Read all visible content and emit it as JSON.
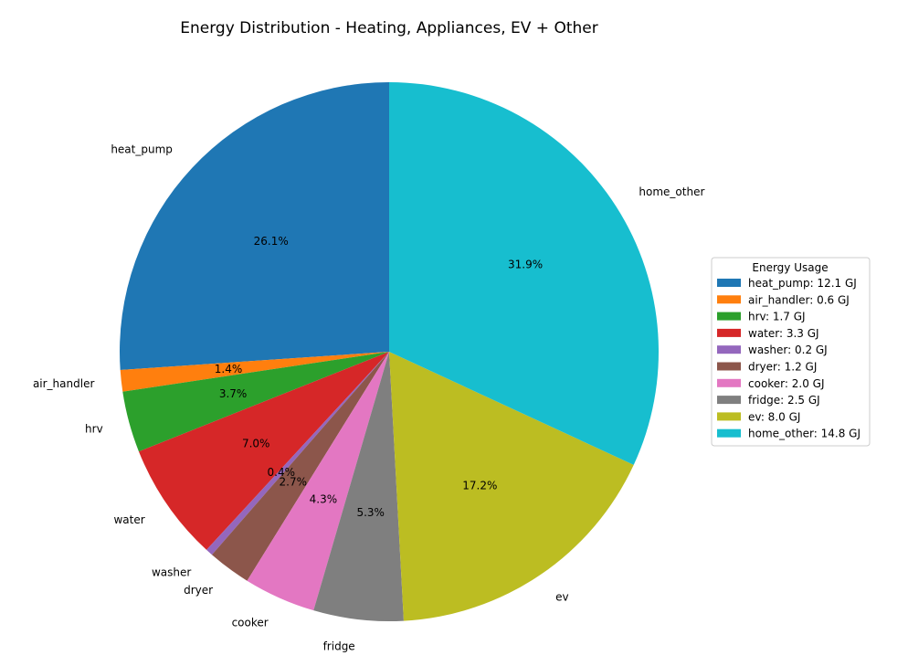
{
  "chart_data": {
    "type": "pie",
    "title": "Energy Distribution - Heating, Appliances, EV + Other",
    "legend": {
      "title": "Energy Usage",
      "placement": "right"
    },
    "unit": "GJ",
    "start_angle_deg": 90,
    "direction": "counterclockwise",
    "slices": [
      {
        "label": "heat_pump",
        "value": 12.1,
        "pct_label": "26.1%",
        "legend_label": "heat_pump: 12.1 GJ",
        "color": "#1f77b4"
      },
      {
        "label": "air_handler",
        "value": 0.6,
        "pct_label": "1.4%",
        "legend_label": "air_handler: 0.6 GJ",
        "color": "#ff7f0e"
      },
      {
        "label": "hrv",
        "value": 1.7,
        "pct_label": "3.7%",
        "legend_label": "hrv: 1.7 GJ",
        "color": "#2ca02c"
      },
      {
        "label": "water",
        "value": 3.3,
        "pct_label": "7.0%",
        "legend_label": "water: 3.3 GJ",
        "color": "#d62728"
      },
      {
        "label": "washer",
        "value": 0.2,
        "pct_label": "0.4%",
        "legend_label": "washer: 0.2 GJ",
        "color": "#9467bd"
      },
      {
        "label": "dryer",
        "value": 1.2,
        "pct_label": "2.7%",
        "legend_label": "dryer: 1.2 GJ",
        "color": "#8c564b"
      },
      {
        "label": "cooker",
        "value": 2.0,
        "pct_label": "4.3%",
        "legend_label": "cooker: 2.0 GJ",
        "color": "#e377c2"
      },
      {
        "label": "fridge",
        "value": 2.5,
        "pct_label": "5.3%",
        "legend_label": "fridge: 2.5 GJ",
        "color": "#7f7f7f"
      },
      {
        "label": "ev",
        "value": 8.0,
        "pct_label": "17.2%",
        "legend_label": "ev: 8.0 GJ",
        "color": "#bcbd22"
      },
      {
        "label": "home_other",
        "value": 14.8,
        "pct_label": "31.9%",
        "legend_label": "home_other: 14.8 GJ",
        "color": "#17becf"
      }
    ]
  }
}
